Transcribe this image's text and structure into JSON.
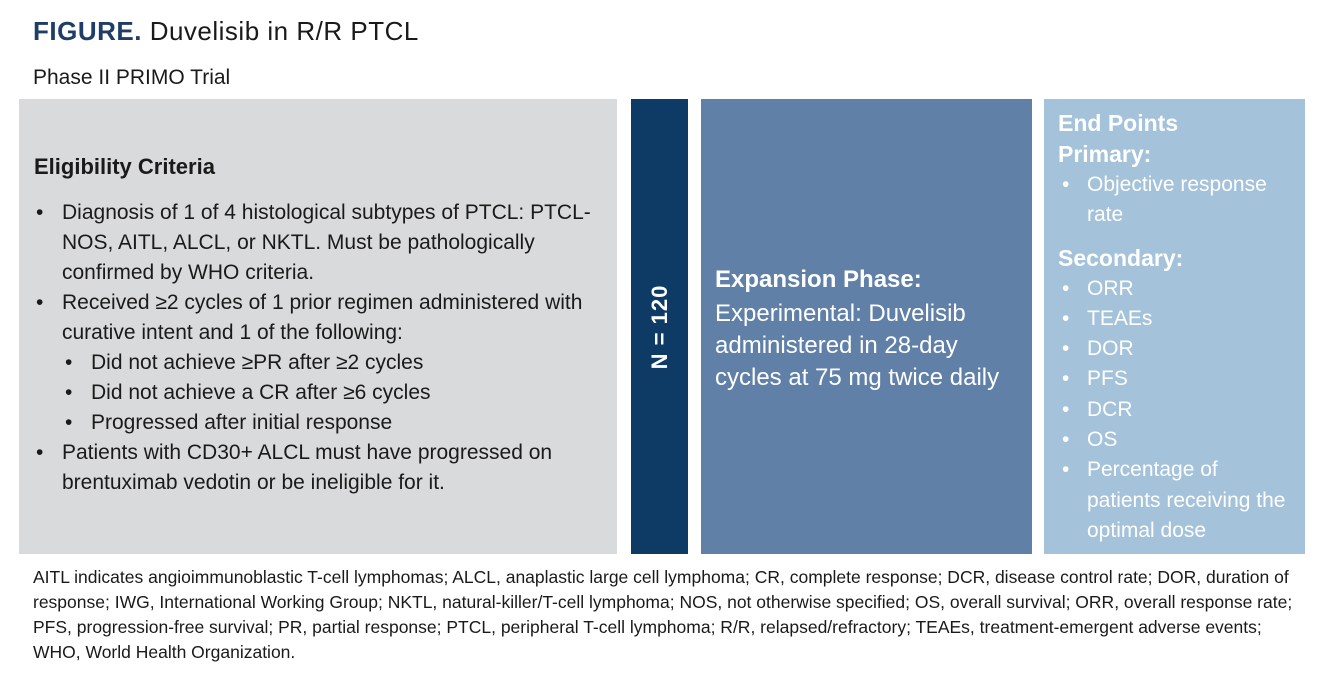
{
  "figure": {
    "label": "FIGURE.",
    "title": "Duvelisib in R/R PTCL",
    "subtitle": "Phase II PRIMO Trial"
  },
  "eligibility": {
    "title": "Eligibility Criteria",
    "items": [
      "Diagnosis of 1 of 4 histological subtypes of PTCL: PTCL-NOS, AITL, ALCL, or NKTL. Must be pathologically confirmed by WHO criteria.",
      "Received ≥2 cycles of 1 prior regimen administered with curative intent and 1 of the following:",
      "Patients with CD30+ ALCL must have progressed on brentuximab vedotin or be ineligible for it."
    ],
    "subitems": [
      "Did not achieve ≥PR after ≥2 cycles",
      "Did not achieve a CR after ≥6 cycles",
      "Progressed after initial response"
    ]
  },
  "enrollment": {
    "label": "N = 120"
  },
  "expansion": {
    "title": "Expansion Phase:",
    "body": "Experimental: Duvelisib administered in 28-day cycles at 75 mg twice daily"
  },
  "endpoints": {
    "title": "End Points",
    "primary_label": "Primary:",
    "primary": [
      "Objective response rate"
    ],
    "secondary_label": "Secondary:",
    "secondary": [
      "ORR",
      "TEAEs",
      "DOR",
      "PFS",
      "DCR",
      "OS",
      "Percentage of patients receiving the optimal dose"
    ]
  },
  "footnote": "AITL indicates angioimmunoblastic T-cell lymphomas; ALCL, anaplastic large cell lymphoma; CR, complete response; DCR, disease control rate; DOR, duration of response; IWG, International Working Group; NKTL, natural-killer/T-cell lymphoma; NOS, not otherwise specified; OS, overall survival; ORR, overall response rate; PFS, progression-free survival; PR, partial response; PTCL, peripheral T-cell lymphoma; R/R, relapsed/refractory; TEAEs, treatment-emergent adverse events; WHO, World Health Organization.",
  "colors": {
    "figure_label": "#1f3d66",
    "eligibility_panel": "#d9dadb",
    "n_bar": "#0d3b66",
    "expansion_panel": "#6080a8",
    "endpoints_panel": "#a4c2da"
  }
}
